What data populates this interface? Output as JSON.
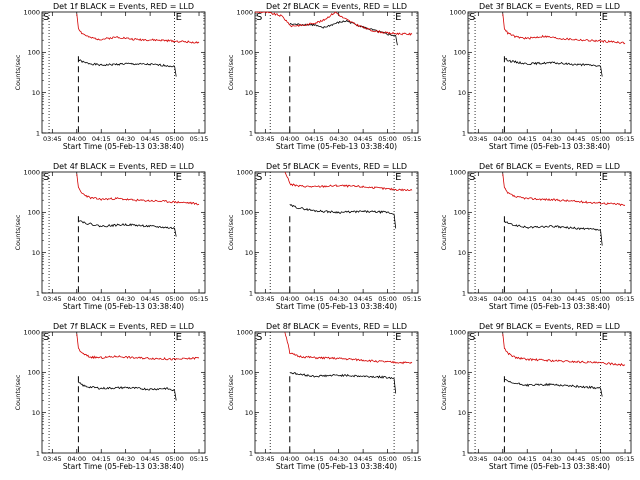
{
  "chart_data": [
    {
      "type": "line",
      "title": "Det 1f BLACK = Events, RED = LLD",
      "xlabel": "Start Time (05-Feb-13 03:38:40)",
      "ylabel": "Counts/sec",
      "x_ticks": [
        "03:45",
        "04:00",
        "04:15",
        "04:30",
        "04:45",
        "05:00",
        "05:15"
      ],
      "y_ticks": [
        "1",
        "10",
        "100",
        "1000"
      ],
      "y_scale": "log",
      "ylim": [
        1,
        1000
      ],
      "xlim_minutes_after_0338": [
        0,
        100
      ],
      "markers": [
        "S",
        "E"
      ],
      "dotted_lines_at": [
        "03:43",
        "05:00"
      ],
      "dashed_line_at": "04:01",
      "series": [
        {
          "color": "#000000",
          "x": [
            "04:01",
            "04:05",
            "04:15",
            "04:30",
            "04:45",
            "04:55",
            "05:00",
            "05:01"
          ],
          "values": [
            65,
            55,
            48,
            52,
            50,
            47,
            45,
            25
          ]
        },
        {
          "color": "#d40000",
          "x": [
            "04:00",
            "04:01",
            "04:03",
            "04:08",
            "04:15",
            "04:25",
            "04:35",
            "04:50",
            "05:00",
            "05:10",
            "05:15"
          ],
          "values": [
            900,
            400,
            300,
            230,
            210,
            240,
            210,
            200,
            190,
            180,
            170
          ]
        }
      ]
    },
    {
      "type": "line",
      "title": "Det 2f BLACK = Events, RED = LLD",
      "xlabel": "Start Time (05-Feb-13 03:38:40)",
      "ylabel": "Counts/sec",
      "x_ticks": [
        "03:45",
        "04:00",
        "04:15",
        "04:30",
        "04:45",
        "05:00",
        "05:15"
      ],
      "y_ticks": [
        "1",
        "10",
        "100",
        "1000"
      ],
      "y_scale": "log",
      "ylim": [
        1,
        1000
      ],
      "markers": [
        "S",
        "E"
      ],
      "dotted_lines_at": [
        "03:48",
        "05:04"
      ],
      "dashed_line_at": "04:00",
      "series": [
        {
          "color": "#000000",
          "x": [
            "04:00",
            "04:05",
            "04:15",
            "04:20",
            "04:30",
            "04:35",
            "04:45",
            "05:00",
            "05:05",
            "05:06"
          ],
          "values": [
            500,
            490,
            480,
            400,
            550,
            600,
            420,
            280,
            260,
            150
          ]
        },
        {
          "color": "#d40000",
          "x": [
            "03:38",
            "03:45",
            "03:55",
            "03:59",
            "04:00",
            "04:10",
            "04:20",
            "04:28",
            "04:32",
            "04:40",
            "04:50",
            "05:00",
            "05:15"
          ],
          "values": [
            1000,
            1000,
            800,
            550,
            450,
            480,
            600,
            1000,
            750,
            500,
            350,
            300,
            280
          ]
        }
      ]
    },
    {
      "type": "line",
      "title": "Det 3f BLACK = Events, RED = LLD",
      "xlabel": "Start Time (05-Feb-13 03:38:40)",
      "ylabel": "Counts/sec",
      "x_ticks": [
        "03:45",
        "04:00",
        "04:15",
        "04:30",
        "04:45",
        "05:00",
        "05:15"
      ],
      "y_ticks": [
        "1",
        "10",
        "100",
        "1000"
      ],
      "y_scale": "log",
      "ylim": [
        1,
        1000
      ],
      "markers": [
        "S",
        "E"
      ],
      "dotted_lines_at": [
        "03:43",
        "05:00"
      ],
      "dashed_line_at": "04:01",
      "series": [
        {
          "color": "#000000",
          "x": [
            "04:01",
            "04:05",
            "04:15",
            "04:30",
            "04:45",
            "04:55",
            "05:00",
            "05:01"
          ],
          "values": [
            70,
            60,
            52,
            55,
            50,
            48,
            45,
            25
          ]
        },
        {
          "color": "#d40000",
          "x": [
            "04:00",
            "04:01",
            "04:03",
            "04:08",
            "04:15",
            "04:25",
            "04:35",
            "04:50",
            "05:00",
            "05:10",
            "05:15"
          ],
          "values": [
            900,
            400,
            300,
            240,
            220,
            250,
            220,
            200,
            190,
            180,
            170
          ]
        }
      ]
    },
    {
      "type": "line",
      "title": "Det 4f BLACK = Events, RED = LLD",
      "xlabel": "Start Time (05-Feb-13 03:38:40)",
      "ylabel": "Counts/sec",
      "x_ticks": [
        "03:45",
        "04:00",
        "04:15",
        "04:30",
        "04:45",
        "05:00",
        "05:15"
      ],
      "y_ticks": [
        "1",
        "10",
        "100",
        "1000"
      ],
      "y_scale": "log",
      "ylim": [
        1,
        1000
      ],
      "markers": [
        "S",
        "E"
      ],
      "dotted_lines_at": [
        "03:43",
        "05:00"
      ],
      "dashed_line_at": "04:01",
      "series": [
        {
          "color": "#000000",
          "x": [
            "04:01",
            "04:05",
            "04:15",
            "04:30",
            "04:45",
            "04:55",
            "05:00",
            "05:01"
          ],
          "values": [
            65,
            55,
            45,
            50,
            45,
            42,
            40,
            25
          ]
        },
        {
          "color": "#d40000",
          "x": [
            "04:00",
            "04:01",
            "04:03",
            "04:08",
            "04:15",
            "04:25",
            "04:35",
            "04:50",
            "05:00",
            "05:10",
            "05:15"
          ],
          "values": [
            900,
            400,
            300,
            230,
            210,
            220,
            200,
            190,
            180,
            170,
            160
          ]
        }
      ]
    },
    {
      "type": "line",
      "title": "Det 5f BLACK = Events, RED = LLD",
      "xlabel": "Start Time (05-Feb-13 03:38:40)",
      "ylabel": "Counts/sec",
      "x_ticks": [
        "03:45",
        "04:00",
        "04:15",
        "04:30",
        "04:45",
        "05:00",
        "05:15"
      ],
      "y_ticks": [
        "1",
        "10",
        "100",
        "1000"
      ],
      "y_scale": "log",
      "ylim": [
        1,
        1000
      ],
      "markers": [
        "S",
        "E"
      ],
      "dotted_lines_at": [
        "03:48",
        "05:04"
      ],
      "dashed_line_at": "04:00",
      "series": [
        {
          "color": "#000000",
          "x": [
            "04:00",
            "04:05",
            "04:15",
            "04:30",
            "04:45",
            "05:00",
            "05:04",
            "05:05"
          ],
          "values": [
            150,
            130,
            110,
            100,
            105,
            100,
            90,
            40
          ]
        },
        {
          "color": "#d40000",
          "x": [
            "03:57",
            "03:59",
            "04:00",
            "04:05",
            "04:15",
            "04:30",
            "04:45",
            "05:00",
            "05:15"
          ],
          "values": [
            1000,
            700,
            500,
            450,
            430,
            460,
            430,
            380,
            350
          ]
        }
      ]
    },
    {
      "type": "line",
      "title": "Det 6f BLACK = Events, RED = LLD",
      "xlabel": "Start Time (05-Feb-13 03:38:40)",
      "ylabel": "Counts/sec",
      "x_ticks": [
        "03:45",
        "04:00",
        "04:15",
        "04:30",
        "04:45",
        "05:00",
        "05:15"
      ],
      "y_ticks": [
        "1",
        "10",
        "100",
        "1000"
      ],
      "y_scale": "log",
      "ylim": [
        1,
        1000
      ],
      "markers": [
        "S",
        "E"
      ],
      "dotted_lines_at": [
        "03:43",
        "05:00"
      ],
      "dashed_line_at": "04:01",
      "series": [
        {
          "color": "#000000",
          "x": [
            "04:01",
            "04:05",
            "04:15",
            "04:30",
            "04:45",
            "04:55",
            "05:00",
            "05:01"
          ],
          "values": [
            60,
            50,
            42,
            45,
            40,
            38,
            35,
            15
          ]
        },
        {
          "color": "#d40000",
          "x": [
            "04:00",
            "04:01",
            "04:03",
            "04:08",
            "04:15",
            "04:25",
            "04:35",
            "04:50",
            "05:00",
            "05:10",
            "05:15"
          ],
          "values": [
            900,
            400,
            300,
            240,
            220,
            210,
            200,
            180,
            170,
            160,
            150
          ]
        }
      ]
    },
    {
      "type": "line",
      "title": "Det 7f BLACK = Events, RED = LLD",
      "xlabel": "Start Time (05-Feb-13 03:38:40)",
      "ylabel": "Counts/sec",
      "x_ticks": [
        "03:45",
        "04:00",
        "04:15",
        "04:30",
        "04:45",
        "05:00",
        "05:15"
      ],
      "y_ticks": [
        "1",
        "10",
        "100",
        "1000"
      ],
      "y_scale": "log",
      "ylim": [
        1,
        1000
      ],
      "markers": [
        "S",
        "E"
      ],
      "dotted_lines_at": [
        "03:43",
        "05:00"
      ],
      "dashed_line_at": "04:01",
      "series": [
        {
          "color": "#000000",
          "x": [
            "04:01",
            "04:05",
            "04:15",
            "04:30",
            "04:45",
            "04:55",
            "05:00",
            "05:01"
          ],
          "values": [
            55,
            45,
            40,
            42,
            38,
            40,
            35,
            20
          ]
        },
        {
          "color": "#d40000",
          "x": [
            "04:00",
            "04:01",
            "04:03",
            "04:08",
            "04:15",
            "04:25",
            "04:35",
            "04:50",
            "05:00",
            "05:10",
            "05:15"
          ],
          "values": [
            900,
            400,
            300,
            240,
            230,
            250,
            230,
            220,
            210,
            220,
            230
          ]
        }
      ]
    },
    {
      "type": "line",
      "title": "Det 8f BLACK = Events, RED = LLD",
      "xlabel": "Start Time (05-Feb-13 03:38:40)",
      "ylabel": "Counts/sec",
      "x_ticks": [
        "03:45",
        "04:00",
        "04:15",
        "04:30",
        "04:45",
        "05:00",
        "05:15"
      ],
      "y_ticks": [
        "1",
        "10",
        "100",
        "1000"
      ],
      "y_scale": "log",
      "ylim": [
        1,
        1000
      ],
      "markers": [
        "S",
        "E"
      ],
      "dotted_lines_at": [
        "03:48",
        "05:04"
      ],
      "dashed_line_at": "04:00",
      "series": [
        {
          "color": "#000000",
          "x": [
            "04:00",
            "04:05",
            "04:15",
            "04:30",
            "04:45",
            "05:00",
            "05:04",
            "05:05"
          ],
          "values": [
            100,
            90,
            80,
            85,
            80,
            75,
            70,
            30
          ]
        },
        {
          "color": "#d40000",
          "x": [
            "03:57",
            "03:59",
            "04:00",
            "04:05",
            "04:15",
            "04:30",
            "04:45",
            "05:00",
            "05:15"
          ],
          "values": [
            1000,
            500,
            300,
            250,
            230,
            220,
            200,
            180,
            170
          ]
        }
      ]
    },
    {
      "type": "line",
      "title": "Det 9f BLACK = Events, RED = LLD",
      "xlabel": "Start Time (05-Feb-13 03:38:40)",
      "ylabel": "Counts/sec",
      "x_ticks": [
        "03:45",
        "04:00",
        "04:15",
        "04:30",
        "04:45",
        "05:00",
        "05:15"
      ],
      "y_ticks": [
        "1",
        "10",
        "100",
        "1000"
      ],
      "y_scale": "log",
      "ylim": [
        1,
        1000
      ],
      "markers": [
        "S",
        "E"
      ],
      "dotted_lines_at": [
        "03:43",
        "05:00"
      ],
      "dashed_line_at": "04:01",
      "series": [
        {
          "color": "#000000",
          "x": [
            "04:01",
            "04:05",
            "04:15",
            "04:30",
            "04:45",
            "04:55",
            "05:00",
            "05:01"
          ],
          "values": [
            65,
            55,
            48,
            50,
            45,
            42,
            40,
            25
          ]
        },
        {
          "color": "#d40000",
          "x": [
            "04:00",
            "04:01",
            "04:03",
            "04:08",
            "04:15",
            "04:25",
            "04:35",
            "04:50",
            "05:00",
            "05:10",
            "05:15"
          ],
          "values": [
            900,
            400,
            300,
            230,
            210,
            200,
            190,
            180,
            170,
            160,
            150
          ]
        }
      ]
    }
  ]
}
